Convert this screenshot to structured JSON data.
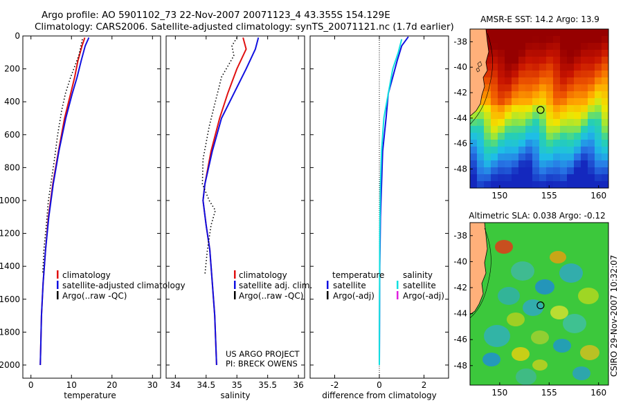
{
  "title": {
    "line1": "Argo profile: AO 5901102_73 22-Nov-2007 20071123_4 43.355S 154.129E",
    "line2": "Climatology: CARS2006. Satellite-adjusted climatology: synTS_20071121.nc (1.7d earlier)"
  },
  "credit": "CSIRO 29-Nov-2007 10:32:07",
  "project_note": {
    "line1": "US ARGO PROJECT",
    "line2": "PI: BRECK OWENS"
  },
  "colors": {
    "clim": "#e01010",
    "sat": "#1010e0",
    "argo": "#000000",
    "sat_cyan": "#10e0e0",
    "argo_magenta": "#e020e0",
    "land": "#ffb07a",
    "marker": "#000000"
  },
  "chart_data": [
    {
      "type": "line",
      "name": "temperature-profile",
      "xlabel": "temperature",
      "xlim": [
        -2,
        32
      ],
      "ylim": [
        0,
        2080
      ],
      "xticks": [
        "0",
        "10",
        "20",
        "30"
      ],
      "xtick_values": [
        0,
        10,
        20,
        30
      ],
      "yticks": [
        "0",
        "200",
        "400",
        "600",
        "800",
        "1000",
        "1200",
        "1400",
        "1600",
        "1800",
        "2000"
      ],
      "ytick_values": [
        0,
        200,
        400,
        600,
        800,
        1000,
        1200,
        1400,
        1600,
        1800,
        2000
      ],
      "legend": [
        "climatology",
        "satellite-adjusted climatology",
        "Argo(..raw -QC)"
      ],
      "series": [
        {
          "name": "climatology",
          "style": "solid",
          "color": "clim",
          "pts": [
            [
              13.3,
              10
            ],
            [
              12.6,
              60
            ],
            [
              11.6,
              150
            ],
            [
              10.8,
              250
            ],
            [
              9.8,
              350
            ],
            [
              8.3,
              500
            ],
            [
              6.8,
              700
            ],
            [
              5.4,
              900
            ],
            [
              4.3,
              1100
            ],
            [
              3.6,
              1300
            ],
            [
              3.0,
              1500
            ],
            [
              2.6,
              1700
            ],
            [
              2.4,
              1900
            ],
            [
              2.3,
              2000
            ]
          ]
        },
        {
          "name": "satellite-adjusted climatology",
          "style": "solid",
          "color": "sat",
          "pts": [
            [
              14.3,
              10
            ],
            [
              13.4,
              60
            ],
            [
              12.4,
              150
            ],
            [
              11.4,
              250
            ],
            [
              10.2,
              350
            ],
            [
              8.6,
              500
            ],
            [
              6.9,
              700
            ],
            [
              5.5,
              900
            ],
            [
              4.4,
              1100
            ],
            [
              3.6,
              1300
            ],
            [
              3.0,
              1500
            ],
            [
              2.6,
              1700
            ],
            [
              2.4,
              1900
            ],
            [
              2.3,
              2000
            ]
          ]
        },
        {
          "name": "Argo(..raw -QC)",
          "style": "dotted",
          "color": "argo",
          "pts": [
            [
              12.7,
              20
            ],
            [
              11.8,
              120
            ],
            [
              9.8,
              250
            ],
            [
              8.5,
              350
            ],
            [
              7.6,
              450
            ],
            [
              6.6,
              600
            ],
            [
              5.8,
              750
            ],
            [
              4.9,
              900
            ],
            [
              4.3,
              1000
            ],
            [
              3.8,
              1150
            ],
            [
              3.2,
              1300
            ],
            [
              2.9,
              1450
            ]
          ]
        }
      ]
    },
    {
      "type": "line",
      "name": "salinity-profile",
      "xlabel": "salinity",
      "xlim": [
        33.85,
        36.1
      ],
      "ylim": [
        0,
        2080
      ],
      "xticks": [
        "34",
        "34.5",
        "35",
        "35.5",
        "36"
      ],
      "xtick_values": [
        34,
        34.5,
        35,
        35.5,
        36
      ],
      "legend": [
        "climatology",
        "satellite adj. clim.",
        "Argo(..raw -QC)"
      ],
      "series": [
        {
          "name": "climatology",
          "style": "solid",
          "color": "clim",
          "pts": [
            [
              35.1,
              10
            ],
            [
              35.15,
              80
            ],
            [
              35.0,
              200
            ],
            [
              34.85,
              350
            ],
            [
              34.72,
              500
            ],
            [
              34.58,
              700
            ],
            [
              34.48,
              900
            ],
            [
              34.45,
              1000
            ],
            [
              34.5,
              1150
            ],
            [
              34.56,
              1300
            ],
            [
              34.6,
              1500
            ],
            [
              34.64,
              1700
            ],
            [
              34.66,
              1900
            ],
            [
              34.67,
              2000
            ]
          ]
        },
        {
          "name": "satellite adj. clim.",
          "style": "solid",
          "color": "sat",
          "pts": [
            [
              35.35,
              10
            ],
            [
              35.3,
              80
            ],
            [
              35.15,
              200
            ],
            [
              34.95,
              350
            ],
            [
              34.75,
              500
            ],
            [
              34.6,
              700
            ],
            [
              34.48,
              900
            ],
            [
              34.45,
              1000
            ],
            [
              34.5,
              1150
            ],
            [
              34.56,
              1300
            ],
            [
              34.6,
              1500
            ],
            [
              34.64,
              1700
            ],
            [
              34.66,
              1900
            ],
            [
              34.67,
              2000
            ]
          ]
        },
        {
          "name": "Argo(..raw -QC)",
          "style": "dotted",
          "color": "argo",
          "pts": [
            [
              35.0,
              10
            ],
            [
              34.92,
              60
            ],
            [
              34.95,
              120
            ],
            [
              34.75,
              250
            ],
            [
              34.65,
              400
            ],
            [
              34.55,
              550
            ],
            [
              34.45,
              750
            ],
            [
              34.44,
              900
            ],
            [
              34.55,
              1000
            ],
            [
              34.65,
              1060
            ],
            [
              34.58,
              1150
            ],
            [
              34.52,
              1300
            ],
            [
              34.48,
              1450
            ]
          ]
        }
      ]
    },
    {
      "type": "line",
      "name": "difference-profile",
      "xlabel": "difference from climatology",
      "xlim": [
        -3.1,
        3.1
      ],
      "ylim": [
        0,
        2080
      ],
      "xticks": [
        "-2",
        "0",
        "2"
      ],
      "xtick_values": [
        -2,
        0,
        2
      ],
      "legend_titles": [
        "temperature",
        "salinity"
      ],
      "legend": [
        "satellite",
        "Argo(-adj)",
        "satellite",
        "Argo(-adj)"
      ],
      "series": [
        {
          "name": "temperature satellite",
          "style": "solid",
          "color": "sat",
          "pts": [
            [
              1.3,
              5
            ],
            [
              1.0,
              60
            ],
            [
              0.8,
              150
            ],
            [
              0.6,
              250
            ],
            [
              0.4,
              350
            ],
            [
              0.3,
              500
            ],
            [
              0.15,
              700
            ],
            [
              0.1,
              900
            ],
            [
              0.05,
              1100
            ],
            [
              0.02,
              1400
            ],
            [
              0.0,
              2000
            ]
          ]
        },
        {
          "name": "salinity satellite",
          "style": "solid",
          "color": "sat_cyan",
          "pts": [
            [
              1.0,
              20
            ],
            [
              0.85,
              100
            ],
            [
              0.6,
              200
            ],
            [
              0.4,
              350
            ],
            [
              0.2,
              500
            ],
            [
              0.1,
              700
            ],
            [
              0.05,
              900
            ],
            [
              0.02,
              1200
            ],
            [
              0.0,
              2000
            ]
          ]
        }
      ]
    }
  ],
  "maps": [
    {
      "title": "AMSR-E SST: 14.2 Argo: 13.9",
      "xticks": [
        "150",
        "155",
        "160"
      ],
      "xtick_values": [
        150,
        155,
        160
      ],
      "yticks": [
        "-38",
        "-40",
        "-42",
        "-44",
        "-46",
        "-48"
      ],
      "ytick_values": [
        -38,
        -40,
        -42,
        -44,
        -46,
        -48
      ],
      "lon_range": [
        147.0,
        161.0
      ],
      "lat_range": [
        -49.5,
        -37.0
      ],
      "marker": {
        "lon": 154.13,
        "lat": -43.36
      }
    },
    {
      "title": "Altimetric SLA: 0.038 Argo: -0.12",
      "xticks": [
        "150",
        "155",
        "160"
      ],
      "xtick_values": [
        150,
        155,
        160
      ],
      "yticks": [
        "-38",
        "-40",
        "-42",
        "-44",
        "-46",
        "-48"
      ],
      "ytick_values": [
        -38,
        -40,
        -42,
        -44,
        -46,
        -48
      ],
      "lon_range": [
        147.0,
        161.0
      ],
      "lat_range": [
        -49.5,
        -37.0
      ],
      "marker": {
        "lon": 154.13,
        "lat": -43.36
      }
    }
  ]
}
